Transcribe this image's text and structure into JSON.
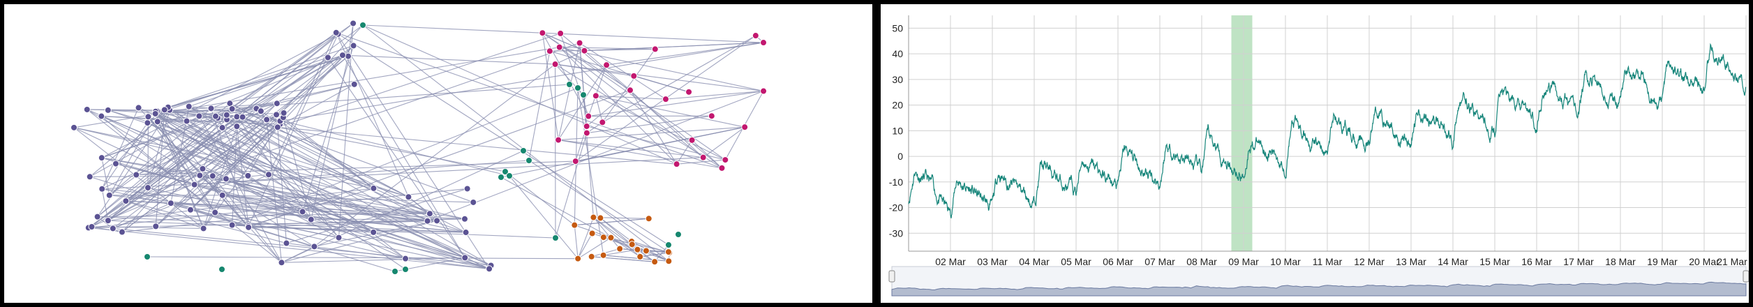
{
  "network": {
    "colors": {
      "blue": "#5b5393",
      "teal": "#16876f",
      "magenta": "#c2176f",
      "orange": "#c55a11",
      "edge": "#8a8fb0"
    },
    "node_count": {
      "blue": 96,
      "teal": 16,
      "magenta": 30,
      "orange": 20
    }
  },
  "chart_data": {
    "type": "line",
    "x_ticks": [
      "02 Mar",
      "03 Mar",
      "04 Mar",
      "05 Mar",
      "06 Mar",
      "07 Mar",
      "08 Mar",
      "09 Mar",
      "10 Mar",
      "11 Mar",
      "12 Mar",
      "13 Mar",
      "14 Mar",
      "15 Mar",
      "16 Mar",
      "17 Mar",
      "18 Mar",
      "19 Mar",
      "20 Mar",
      "21 Mar"
    ],
    "y_ticks": [
      50,
      40,
      30,
      20,
      10,
      0,
      -10,
      -20,
      -30
    ],
    "ylim": [
      -37,
      55
    ],
    "xlim": [
      "01 Mar",
      "21 Mar"
    ],
    "series": [
      {
        "color": "#16857a",
        "x": [
          "01 Mar",
          "02 Mar",
          "03 Mar",
          "04 Mar",
          "05 Mar",
          "06 Mar",
          "07 Mar",
          "08 Mar",
          "09 Mar",
          "10 Mar",
          "11 Mar",
          "12 Mar",
          "13 Mar",
          "14 Mar",
          "15 Mar",
          "16 Mar",
          "17 Mar",
          "18 Mar",
          "19 Mar",
          "20 Mar",
          "21 Mar"
        ],
        "values": [
          -10,
          -16,
          -14,
          -11,
          -8,
          -6,
          -3,
          0,
          0,
          5,
          8,
          10,
          12,
          14,
          17,
          21,
          24,
          27,
          30,
          32,
          35
        ]
      }
    ],
    "highlight_band": {
      "from": "08 Mar 17:00",
      "to": "09 Mar 05:00",
      "color": "#bfe3c4"
    },
    "grid": true
  },
  "navigator": {
    "fill_color": "#b3bccf",
    "line_color": "#6b7aa0"
  }
}
